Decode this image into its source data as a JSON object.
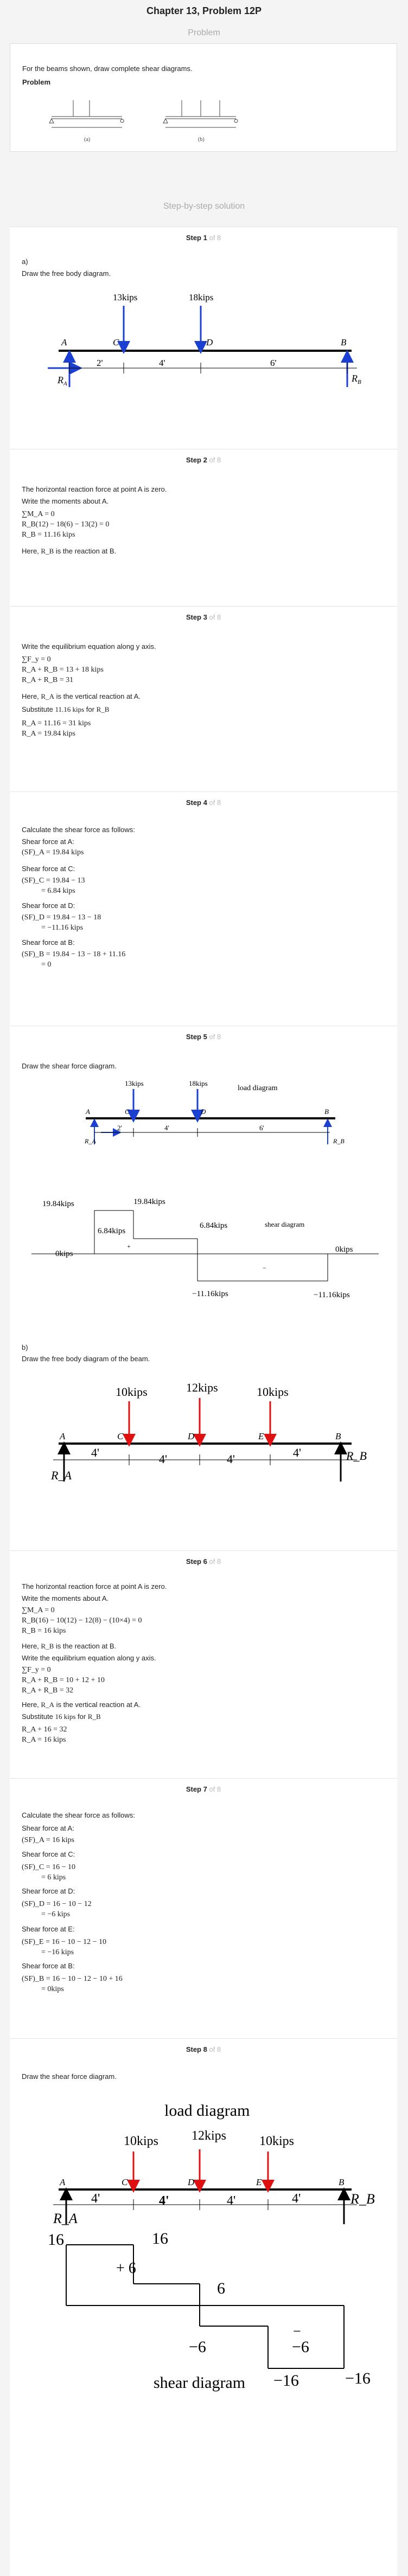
{
  "title": "Chapter 13, Problem 12P",
  "problem_heading": "Problem",
  "problem_instruction": "For the beams shown, draw complete shear diagrams.",
  "problem_label": "Problem",
  "problem_fig_labels": [
    "(a)",
    "(b)"
  ],
  "solution_heading": "Step-by-step solution",
  "steps": [
    {
      "title": "Step 1",
      "of": "of 8"
    },
    {
      "title": "Step 2",
      "of": "of 8"
    },
    {
      "title": "Step 3",
      "of": "of 8"
    },
    {
      "title": "Step 4",
      "of": "of 8"
    },
    {
      "title": "Step 5",
      "of": "of 8"
    },
    {
      "title": "Step 6",
      "of": "of 8"
    },
    {
      "title": "Step 7",
      "of": "of 8"
    },
    {
      "title": "Step 8",
      "of": "of 8"
    }
  ],
  "step1": {
    "part": "a)",
    "text": "Draw the free body diagram.",
    "loads": [
      "13kips",
      "18kips"
    ],
    "points": [
      "A",
      "C",
      "D",
      "B"
    ],
    "dims": [
      "2'",
      "4'",
      "6'"
    ],
    "reactions": [
      "R",
      "A",
      "R",
      "B"
    ]
  },
  "step2": {
    "text1": "The horizontal reaction force at point A is zero.",
    "text2": "Write the moments about A.",
    "eqs": [
      "∑M_A = 0",
      "R_B(12) − 18(6) − 13(2) = 0",
      "R_B = 11.16 kips"
    ],
    "here": "Here,",
    "here_var": "R_B",
    "here_rest": "is the reaction at B."
  },
  "step3": {
    "text1": "Write the equilibrium equation along y axis.",
    "eqs1": [
      "∑F_y = 0",
      "R_A + R_B = 13 + 18 kips",
      "R_A + R_B = 31"
    ],
    "here": "Here,",
    "here_var": "R_A",
    "here_rest": "is the vertical reaction at A.",
    "subst": "Substitute",
    "subst_val": "11.16 kips",
    "subst_for": "for",
    "subst_var": "R_B",
    "eqs2": [
      "R_A = 11.16 = 31 kips",
      "R_A = 19.84 kips"
    ]
  },
  "step4": {
    "text1": "Calculate the shear force as follows:",
    "items": [
      {
        "label": "Shear force at A:",
        "lines": [
          "(SF)_A = 19.84 kips"
        ]
      },
      {
        "label": "Shear force at C:",
        "lines": [
          "(SF)_C = 19.84 − 13",
          "= 6.84 kips"
        ]
      },
      {
        "label": "Shear force at D:",
        "lines": [
          "(SF)_D = 19.84 − 13 − 18",
          "= −11.16 kips"
        ]
      },
      {
        "label": "Shear force at B:",
        "lines": [
          "(SF)_B = 19.84 − 13 − 18 + 11.16",
          "= 0"
        ]
      }
    ]
  },
  "step5": {
    "text1": "Draw the shear force diagram.",
    "load_title": "load diagram",
    "loads": [
      "13kips",
      "18kips"
    ],
    "points": [
      "A",
      "C",
      "D",
      "B"
    ],
    "dims": [
      "2'",
      "4'",
      "6'"
    ],
    "reactions": [
      "R_A",
      "R_B"
    ],
    "shear_title": "shear diagram",
    "shear_labels": [
      "19.84kips",
      "19.84kips",
      "6.84kips",
      "6.84kips",
      "0kips",
      "0kips",
      "−11.16kips",
      "−11.16kips"
    ],
    "signs": [
      "+",
      "−"
    ],
    "part_b": "b)",
    "text2": "Draw the free body diagram of the beam.",
    "b_loads": [
      "10kips",
      "12kips",
      "10kips"
    ],
    "b_points": [
      "A",
      "C",
      "D",
      "E",
      "B"
    ],
    "b_dims": [
      "4'",
      "4'",
      "4'",
      "4'"
    ],
    "b_reactions": [
      "R_A",
      "R_B"
    ]
  },
  "step6": {
    "text1": "The horizontal reaction force at point A is zero.",
    "text2": "Write the moments about A.",
    "eqs": [
      "∑M_A = 0",
      "R_B(16) − 10(12) − 12(8) − (10×4) = 0",
      "R_B = 16 kips"
    ],
    "here1": "Here,",
    "here1_var": "R_B",
    "here1_rest": "is the reaction at B.",
    "text3": "Write the equilibrium equation along y axis.",
    "eqs2": [
      "∑F_y = 0",
      "R_A + R_B = 10 + 12 + 10",
      "R_A + R_B = 32"
    ],
    "here2": "Here,",
    "here2_var": "R_A",
    "here2_rest": "is the vertical reaction at A.",
    "subst": "Substitute",
    "subst_val": "16 kips",
    "subst_for": "for",
    "subst_var": "R_B",
    "eqs3": [
      "R_A + 16 = 32",
      "R_A = 16 kips"
    ]
  },
  "step7": {
    "text1": "Calculate the shear force as follows:",
    "items": [
      {
        "label": "Shear force at A:",
        "lines": [
          "(SF)_A = 16 kips"
        ]
      },
      {
        "label": "Shear force at C:",
        "lines": [
          "(SF)_C = 16 − 10",
          "= 6 kips"
        ]
      },
      {
        "label": "Shear force at D:",
        "lines": [
          "(SF)_D = 16 − 10 − 12",
          "= −6 kips"
        ]
      },
      {
        "label": "Shear force at E:",
        "lines": [
          "(SF)_E = 16 − 10 − 12 − 10",
          "= −16 kips"
        ]
      },
      {
        "label": "Shear force at B:",
        "lines": [
          "(SF)_B = 16 − 10 − 12 − 10 + 16",
          "= 0kips"
        ]
      }
    ]
  },
  "step8": {
    "text1": "Draw the shear force diagram.",
    "load_title": "load diagram",
    "loads": [
      "10kips",
      "12kips",
      "10kips"
    ],
    "points": [
      "A",
      "C",
      "D",
      "E",
      "B"
    ],
    "dims": [
      "4'",
      "4'",
      "4'",
      "4'"
    ],
    "reactions": [
      "R_A",
      "R_B"
    ],
    "shear_labels": [
      "16",
      "16",
      "6",
      "−6",
      "−6",
      "−16",
      "−16"
    ],
    "signs": [
      "+  6",
      "−"
    ],
    "shear_title": "shear diagram"
  }
}
